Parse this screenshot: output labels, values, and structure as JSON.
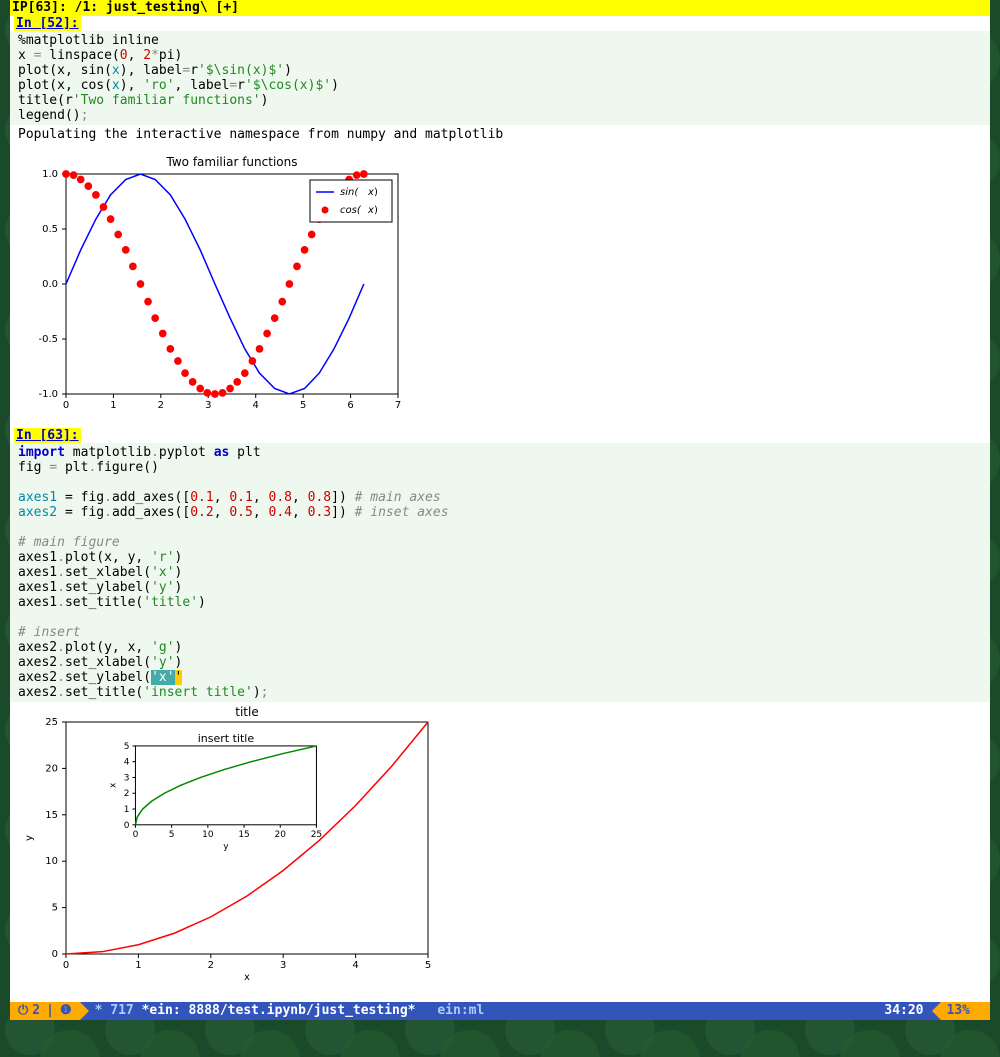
{
  "titlebar": "IP[63]: /1: just_testing\\ [+]",
  "cell1": {
    "prompt": "In [52]:",
    "lines": {
      "l1": "%matplotlib inline",
      "l2_a": "x ",
      "l2_b": "=",
      "l2_c": " linspace(",
      "l2_d": "0",
      "l2_e": ", ",
      "l2_f": "2",
      "l2_g": "*",
      "l2_h": "pi)",
      "l3_a": "plot(x, sin(",
      "l3_b": "x",
      "l3_c": "), label",
      "l3_d": "=",
      "l3_e": "r",
      "l3_f": "'$\\sin(x)$'",
      "l3_g": ")",
      "l4_a": "plot(x, cos(",
      "l4_b": "x",
      "l4_c": "), ",
      "l4_d": "'ro'",
      "l4_e": ", label",
      "l4_f": "=",
      "l4_g": "r",
      "l4_h": "'$\\cos(x)$'",
      "l4_i": ")",
      "l5_a": "title(r",
      "l5_b": "'Two familiar functions'",
      "l5_c": ")",
      "l6_a": "legend()",
      "l6_b": ";"
    },
    "output": "Populating the interactive namespace from numpy and matplotlib"
  },
  "chart1": {
    "type": "line+scatter",
    "title": "Two familiar functions",
    "title_fontsize": 12,
    "xlim": [
      0,
      7
    ],
    "ylim": [
      -1.0,
      1.0
    ],
    "xticks": [
      0,
      1,
      2,
      3,
      4,
      5,
      6,
      7
    ],
    "yticks": [
      -1.0,
      -0.5,
      0.0,
      0.5,
      1.0
    ],
    "axis_fontsize": 10,
    "bg": "#ffffff",
    "border_color": "#000000",
    "series": [
      {
        "name": "sin(x)",
        "type": "line",
        "color": "#0000ff",
        "width": 1.5,
        "points": [
          [
            0,
            0
          ],
          [
            0.31,
            0.31
          ],
          [
            0.63,
            0.59
          ],
          [
            0.94,
            0.81
          ],
          [
            1.26,
            0.95
          ],
          [
            1.57,
            1.0
          ],
          [
            1.88,
            0.95
          ],
          [
            2.2,
            0.81
          ],
          [
            2.51,
            0.59
          ],
          [
            2.83,
            0.31
          ],
          [
            3.14,
            0
          ],
          [
            3.46,
            -0.31
          ],
          [
            3.77,
            -0.59
          ],
          [
            4.08,
            -0.81
          ],
          [
            4.4,
            -0.95
          ],
          [
            4.71,
            -1.0
          ],
          [
            5.03,
            -0.95
          ],
          [
            5.34,
            -0.81
          ],
          [
            5.65,
            -0.59
          ],
          [
            5.97,
            -0.31
          ],
          [
            6.28,
            0
          ]
        ]
      },
      {
        "name": "cos(x)",
        "type": "scatter",
        "color": "#ff0000",
        "marker": "circle",
        "marker_size": 5,
        "points": [
          [
            0,
            1.0
          ],
          [
            0.16,
            0.99
          ],
          [
            0.31,
            0.95
          ],
          [
            0.47,
            0.89
          ],
          [
            0.63,
            0.81
          ],
          [
            0.79,
            0.7
          ],
          [
            0.94,
            0.59
          ],
          [
            1.1,
            0.45
          ],
          [
            1.26,
            0.31
          ],
          [
            1.41,
            0.16
          ],
          [
            1.57,
            0
          ],
          [
            1.73,
            -0.16
          ],
          [
            1.88,
            -0.31
          ],
          [
            2.04,
            -0.45
          ],
          [
            2.2,
            -0.59
          ],
          [
            2.36,
            -0.7
          ],
          [
            2.51,
            -0.81
          ],
          [
            2.67,
            -0.89
          ],
          [
            2.83,
            -0.95
          ],
          [
            2.98,
            -0.99
          ],
          [
            3.14,
            -1.0
          ],
          [
            3.3,
            -0.99
          ],
          [
            3.46,
            -0.95
          ],
          [
            3.61,
            -0.89
          ],
          [
            3.77,
            -0.81
          ],
          [
            3.93,
            -0.7
          ],
          [
            4.08,
            -0.59
          ],
          [
            4.24,
            -0.45
          ],
          [
            4.4,
            -0.31
          ],
          [
            4.56,
            -0.16
          ],
          [
            4.71,
            0
          ],
          [
            4.87,
            0.16
          ],
          [
            5.03,
            0.31
          ],
          [
            5.18,
            0.45
          ],
          [
            5.34,
            0.59
          ],
          [
            5.5,
            0.7
          ],
          [
            5.65,
            0.81
          ],
          [
            5.81,
            0.89
          ],
          [
            5.97,
            0.95
          ],
          [
            6.13,
            0.99
          ],
          [
            6.28,
            1.0
          ]
        ]
      }
    ],
    "legend": {
      "position": "upper-right",
      "border_color": "#000000",
      "items": [
        {
          "label": "sin(x)",
          "color": "#0000ff",
          "type": "line"
        },
        {
          "label": "cos(x)",
          "color": "#ff0000",
          "type": "marker"
        }
      ]
    }
  },
  "cell2": {
    "prompt": "In [63]:",
    "lines": {
      "l1_a": "import",
      "l1_b": " matplotlib",
      "l1_c": ".",
      "l1_d": "pyplot ",
      "l1_e": "as",
      "l1_f": " plt",
      "l2_a": "fig ",
      "l2_b": "=",
      "l2_c": " plt",
      "l2_d": ".",
      "l2_e": "figure()",
      "l4_a": "axes1",
      "l4_b": " = ",
      "l4_c": "fig",
      "l4_d": ".",
      "l4_e": "add_axes([",
      "l4_f": "0.1",
      "l4_g": ", ",
      "l4_h": "0.1",
      "l4_i": ", ",
      "l4_j": "0.8",
      "l4_k": ", ",
      "l4_l": "0.8",
      "l4_m": "]) ",
      "l4_n": "# main axes",
      "l5_a": "axes2",
      "l5_b": " = ",
      "l5_c": "fig",
      "l5_d": ".",
      "l5_e": "add_axes([",
      "l5_f": "0.2",
      "l5_g": ", ",
      "l5_h": "0.5",
      "l5_i": ", ",
      "l5_j": "0.4",
      "l5_k": ", ",
      "l5_l": "0.3",
      "l5_m": "]) ",
      "l5_n": "# inset axes",
      "l7": "# main figure",
      "l8_a": "axes1",
      "l8_b": ".",
      "l8_c": "plot(x, y, ",
      "l8_d": "'r'",
      "l8_e": ")",
      "l9_a": "axes1",
      "l9_b": ".",
      "l9_c": "set_xlabel(",
      "l9_d": "'x'",
      "l9_e": ")",
      "l10_a": "axes1",
      "l10_b": ".",
      "l10_c": "set_ylabel(",
      "l10_d": "'y'",
      "l10_e": ")",
      "l11_a": "axes1",
      "l11_b": ".",
      "l11_c": "set_title(",
      "l11_d": "'title'",
      "l11_e": ")",
      "l13": "# insert",
      "l14_a": "axes2",
      "l14_b": ".",
      "l14_c": "plot(y, x, ",
      "l14_d": "'g'",
      "l14_e": ")",
      "l15_a": "axes2",
      "l15_b": ".",
      "l15_c": "set_xlabel(",
      "l15_d": "'y'",
      "l15_e": ")",
      "l16_a": "axes2",
      "l16_b": ".",
      "l16_c": "set_ylabel(",
      "l16_d": "'x'",
      "l16_e": ")",
      "l16_cursor": "'",
      "l17_a": "axes2",
      "l17_b": ".",
      "l17_c": "set_title(",
      "l17_d": "'insert title'",
      "l17_e": ")",
      "l17_f": ";"
    }
  },
  "chart2": {
    "type": "line-with-inset",
    "main": {
      "title": "title",
      "xlabel": "x",
      "ylabel": "y",
      "xlim": [
        0,
        5
      ],
      "ylim": [
        0,
        25
      ],
      "xticks": [
        0,
        1,
        2,
        3,
        4,
        5
      ],
      "yticks": [
        0,
        5,
        10,
        15,
        20,
        25
      ],
      "color": "#ff0000",
      "width": 1.5,
      "points": [
        [
          0,
          0
        ],
        [
          0.5,
          0.25
        ],
        [
          1,
          1
        ],
        [
          1.5,
          2.25
        ],
        [
          2,
          4
        ],
        [
          2.5,
          6.25
        ],
        [
          3,
          9
        ],
        [
          3.5,
          12.25
        ],
        [
          4,
          16
        ],
        [
          4.5,
          20.25
        ],
        [
          5,
          25
        ]
      ]
    },
    "inset": {
      "title": "insert title",
      "xlabel": "y",
      "ylabel": "x",
      "xlim": [
        0,
        25
      ],
      "ylim": [
        0,
        5
      ],
      "xticks": [
        0,
        5,
        10,
        15,
        20,
        25
      ],
      "yticks": [
        0,
        1,
        2,
        3,
        4,
        5
      ],
      "color": "#008800",
      "width": 1.5,
      "points": [
        [
          0,
          0
        ],
        [
          0.25,
          0.5
        ],
        [
          1,
          1
        ],
        [
          2.25,
          1.5
        ],
        [
          4,
          2
        ],
        [
          6.25,
          2.5
        ],
        [
          9,
          3
        ],
        [
          12.25,
          3.5
        ],
        [
          16,
          4
        ],
        [
          20.25,
          4.5
        ],
        [
          25,
          5
        ]
      ]
    },
    "bg": "#ffffff",
    "border_color": "#000000",
    "fontsize": 10
  },
  "statusbar": {
    "indicator_a": "2",
    "indicator_b": "1",
    "left": "* 717 ",
    "buffer": "*ein: 8888/test.ipynb/just_testing*",
    "mode": "ein:ml",
    "pos": "34:20",
    "pct": "13%"
  }
}
